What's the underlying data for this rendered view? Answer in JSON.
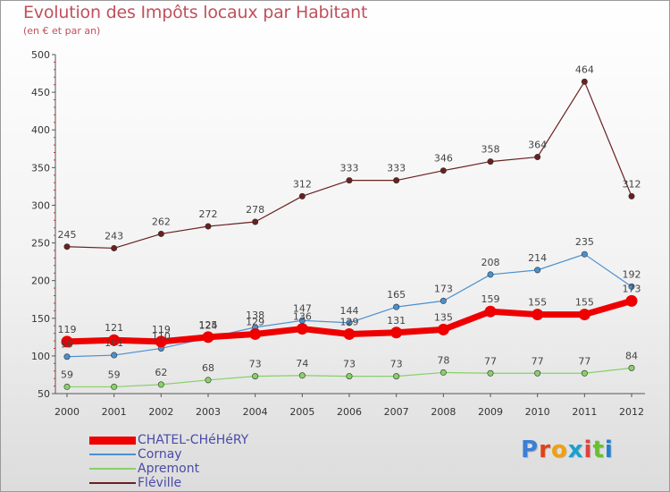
{
  "header": {
    "title": "Evolution des Impôts locaux par Habitant",
    "subtitle": "(en € et par an)"
  },
  "logo": {
    "letters": [
      "P",
      "r",
      "o",
      "x",
      "i",
      "t",
      "i"
    ],
    "colors": [
      "#3a7fd5",
      "#e0401a",
      "#f0a010",
      "#1aa0d0",
      "#e04040",
      "#68c030",
      "#2080d0"
    ]
  },
  "chart_data": {
    "type": "line",
    "x": [
      "2000",
      "2001",
      "2002",
      "2003",
      "2004",
      "2005",
      "2006",
      "2007",
      "2008",
      "2009",
      "2010",
      "2011",
      "2012"
    ],
    "ylim": [
      50,
      500
    ],
    "yticks": [
      "50",
      "100",
      "150",
      "200",
      "250",
      "300",
      "350",
      "400",
      "450",
      "500"
    ],
    "grid": false,
    "legend_position": "bottom-left",
    "series": [
      {
        "name": "CHATEL-CHéHéRY",
        "color": "#ee0000",
        "width": 7,
        "values": [
          119,
          121,
          119,
          125,
          129,
          136,
          129,
          131,
          135,
          159,
          155,
          155,
          173
        ],
        "labels": [
          "119",
          "121",
          "119",
          "125",
          "129",
          "136",
          "129",
          "131",
          "135",
          "159",
          "155",
          "155",
          "173"
        ]
      },
      {
        "name": "Cornay",
        "color": "#4a90d0",
        "width": 1.2,
        "values": [
          99,
          101,
          110,
          124,
          138,
          147,
          144,
          165,
          173,
          208,
          214,
          235,
          192
        ],
        "labels": [
          "99",
          "101",
          "110",
          "124",
          "138",
          "147",
          "144",
          "165",
          "173",
          "208",
          "214",
          "235",
          "192"
        ]
      },
      {
        "name": "Apremont",
        "color": "#88d068",
        "width": 1.2,
        "values": [
          59,
          59,
          62,
          68,
          73,
          74,
          73,
          73,
          78,
          77,
          77,
          77,
          84
        ],
        "labels": [
          "59",
          "59",
          "62",
          "68",
          "73",
          "74",
          "73",
          "73",
          "78",
          "77",
          "77",
          "77",
          "84"
        ]
      },
      {
        "name": "Fléville",
        "color": "#6a2020",
        "width": 1.2,
        "values": [
          245,
          243,
          262,
          272,
          278,
          312,
          333,
          333,
          346,
          358,
          364,
          464,
          312
        ],
        "labels": [
          "245",
          "243",
          "262",
          "272",
          "278",
          "312",
          "333",
          "333",
          "346",
          "358",
          "364",
          "464",
          "312"
        ]
      }
    ]
  }
}
